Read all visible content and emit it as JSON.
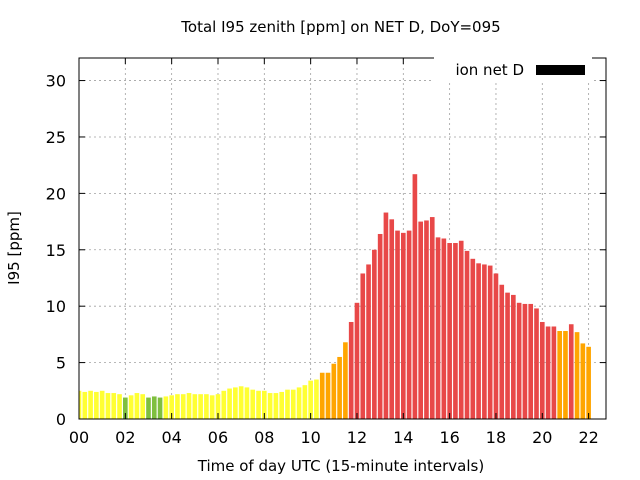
{
  "chart_data": {
    "type": "bar",
    "title": "Total I95 zenith [ppm] on NET D, DoY=095",
    "xlabel": "Time of day UTC (15-minute intervals)",
    "ylabel": "I95 [ppm]",
    "ylim": [
      0,
      32
    ],
    "xlim": [
      0,
      22.75
    ],
    "y_ticks": [
      0,
      5,
      10,
      15,
      20,
      25,
      30
    ],
    "x_ticks": [
      {
        "value": 0,
        "label": "00"
      },
      {
        "value": 2,
        "label": "02"
      },
      {
        "value": 4,
        "label": "04"
      },
      {
        "value": 6,
        "label": "06"
      },
      {
        "value": 8,
        "label": "08"
      },
      {
        "value": 10,
        "label": "10"
      },
      {
        "value": 12,
        "label": "12"
      },
      {
        "value": 14,
        "label": "14"
      },
      {
        "value": 16,
        "label": "16"
      },
      {
        "value": 18,
        "label": "18"
      },
      {
        "value": 20,
        "label": "20"
      },
      {
        "value": 22,
        "label": "22"
      }
    ],
    "grid": true,
    "legend": {
      "label": "ion net D",
      "placement": "top-right",
      "color": "#000000"
    },
    "bar_interval_hours": 0.25,
    "colors": {
      "green": "#7fbf3f",
      "yellow": "#ffff33",
      "orange": "#ffa500",
      "red": "#e84848"
    },
    "values": [
      2.5,
      2.4,
      2.5,
      2.4,
      2.5,
      2.3,
      2.3,
      2.2,
      1.9,
      2.1,
      2.3,
      2.2,
      1.9,
      2.0,
      1.9,
      2.0,
      2.1,
      2.2,
      2.2,
      2.3,
      2.2,
      2.2,
      2.2,
      2.1,
      2.2,
      2.5,
      2.7,
      2.8,
      2.9,
      2.8,
      2.6,
      2.5,
      2.5,
      2.3,
      2.3,
      2.4,
      2.6,
      2.6,
      2.8,
      3.0,
      3.4,
      3.5,
      4.1,
      4.1,
      4.9,
      5.5,
      6.8,
      8.6,
      10.3,
      12.9,
      13.7,
      15.0,
      16.4,
      18.3,
      17.7,
      16.7,
      16.5,
      16.7,
      21.7,
      17.5,
      17.6,
      17.9,
      16.1,
      16.0,
      15.6,
      15.6,
      15.8,
      14.9,
      14.2,
      13.8,
      13.7,
      13.6,
      12.9,
      11.9,
      11.2,
      11.0,
      10.3,
      10.2,
      10.2,
      9.8,
      8.6,
      8.2,
      8.2,
      7.8,
      7.8,
      8.4,
      7.7,
      6.7,
      6.4
    ],
    "bar_colors": [
      "yellow",
      "yellow",
      "yellow",
      "yellow",
      "yellow",
      "yellow",
      "yellow",
      "yellow",
      "green",
      "yellow",
      "yellow",
      "yellow",
      "green",
      "green",
      "green",
      "yellow",
      "yellow",
      "yellow",
      "yellow",
      "yellow",
      "yellow",
      "yellow",
      "yellow",
      "yellow",
      "yellow",
      "yellow",
      "yellow",
      "yellow",
      "yellow",
      "yellow",
      "yellow",
      "yellow",
      "yellow",
      "yellow",
      "yellow",
      "yellow",
      "yellow",
      "yellow",
      "yellow",
      "yellow",
      "yellow",
      "yellow",
      "orange",
      "orange",
      "orange",
      "orange",
      "orange",
      "red",
      "red",
      "red",
      "red",
      "red",
      "red",
      "red",
      "red",
      "red",
      "red",
      "red",
      "red",
      "red",
      "red",
      "red",
      "red",
      "red",
      "red",
      "red",
      "red",
      "red",
      "red",
      "red",
      "red",
      "red",
      "red",
      "red",
      "red",
      "red",
      "red",
      "red",
      "red",
      "red",
      "red",
      "red",
      "red",
      "orange",
      "orange",
      "red",
      "orange",
      "orange",
      "orange"
    ]
  }
}
